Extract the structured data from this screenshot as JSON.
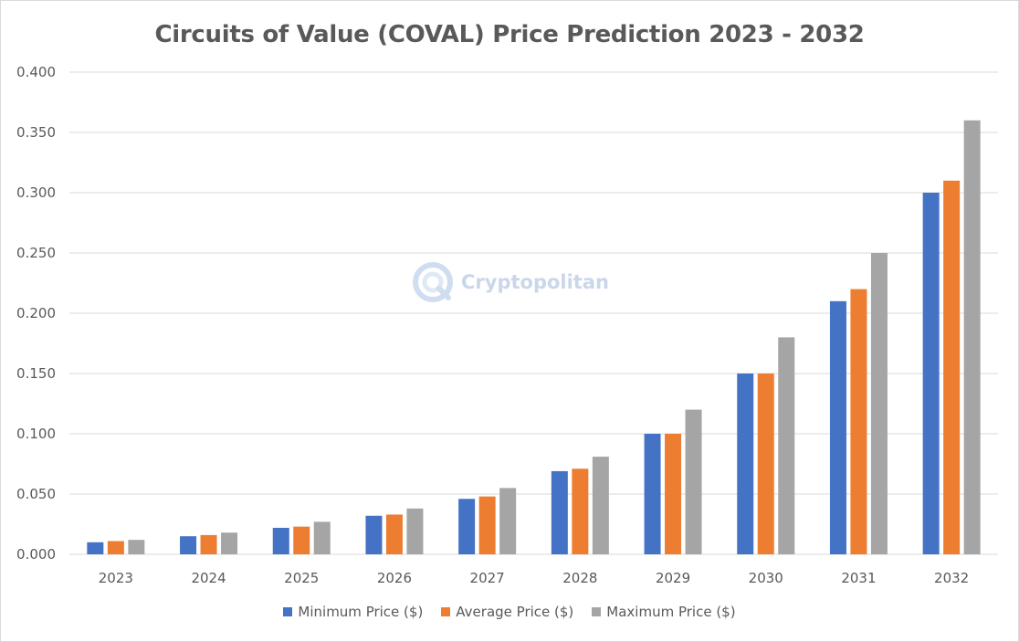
{
  "chart_data": {
    "type": "bar",
    "title": "Circuits of Value (COVAL) Price Prediction 2023 - 2032",
    "xlabel": "",
    "ylabel": "",
    "categories": [
      "2023",
      "2024",
      "2025",
      "2026",
      "2027",
      "2028",
      "2029",
      "2030",
      "2031",
      "2032"
    ],
    "ylim": [
      0,
      0.4
    ],
    "yticks": [
      "0.000",
      "0.050",
      "0.100",
      "0.150",
      "0.200",
      "0.250",
      "0.300",
      "0.350",
      "0.400"
    ],
    "ytick_values": [
      0,
      0.05,
      0.1,
      0.15,
      0.2,
      0.25,
      0.3,
      0.35,
      0.4
    ],
    "grid": true,
    "legend_position": "bottom",
    "series": [
      {
        "name": "Minimum Price ($)",
        "color": "#4472c4",
        "values": [
          0.01,
          0.015,
          0.022,
          0.032,
          0.046,
          0.069,
          0.1,
          0.15,
          0.21,
          0.3
        ]
      },
      {
        "name": "Average Price ($)",
        "color": "#ed7d31",
        "values": [
          0.011,
          0.016,
          0.023,
          0.033,
          0.048,
          0.071,
          0.1,
          0.15,
          0.22,
          0.31
        ]
      },
      {
        "name": "Maximum Price ($)",
        "color": "#a5a5a5",
        "values": [
          0.012,
          0.018,
          0.027,
          0.038,
          0.055,
          0.081,
          0.12,
          0.18,
          0.25,
          0.36
        ]
      }
    ]
  },
  "watermark": {
    "text": "Cryptopolitan",
    "icon": "cryptopolitan-logo-icon"
  }
}
